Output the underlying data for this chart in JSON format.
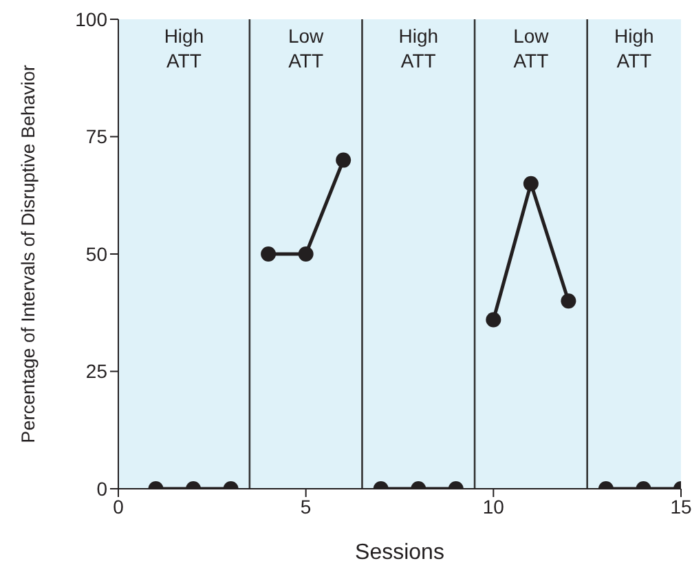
{
  "chart_data": {
    "type": "line",
    "xlabel": "Sessions",
    "ylabel": "Percentage of Intervals of Disruptive Behavior",
    "xlim": [
      0,
      15
    ],
    "xticks": [
      0,
      5,
      10,
      15
    ],
    "ylim": [
      0,
      100
    ],
    "yticks": [
      0,
      25,
      50,
      75,
      100
    ],
    "grid": false,
    "marker": "circle",
    "line_style": "solid",
    "series": [
      {
        "color": "#231f20",
        "x": [
          1,
          2,
          3
        ],
        "values": [
          0,
          0,
          0
        ]
      },
      {
        "color": "#231f20",
        "x": [
          4,
          5,
          6
        ],
        "values": [
          50,
          50,
          70
        ]
      },
      {
        "color": "#231f20",
        "x": [
          7,
          8,
          9
        ],
        "values": [
          0,
          0,
          0
        ]
      },
      {
        "color": "#231f20",
        "x": [
          10,
          11,
          12
        ],
        "values": [
          36,
          65,
          40
        ]
      },
      {
        "color": "#231f20",
        "x": [
          13,
          14,
          15
        ],
        "values": [
          0,
          0,
          0
        ]
      }
    ],
    "ref_lines": [
      {
        "axis": "x",
        "value": 3.5,
        "color": "#333333"
      },
      {
        "axis": "x",
        "value": 6.5,
        "color": "#333333"
      },
      {
        "axis": "x",
        "value": 9.5,
        "color": "#333333"
      },
      {
        "axis": "x",
        "value": 12.5,
        "color": "#333333"
      }
    ],
    "annotations": [
      "High ATT",
      "Low ATT",
      "High ATT",
      "Low ATT",
      "High ATT"
    ]
  }
}
